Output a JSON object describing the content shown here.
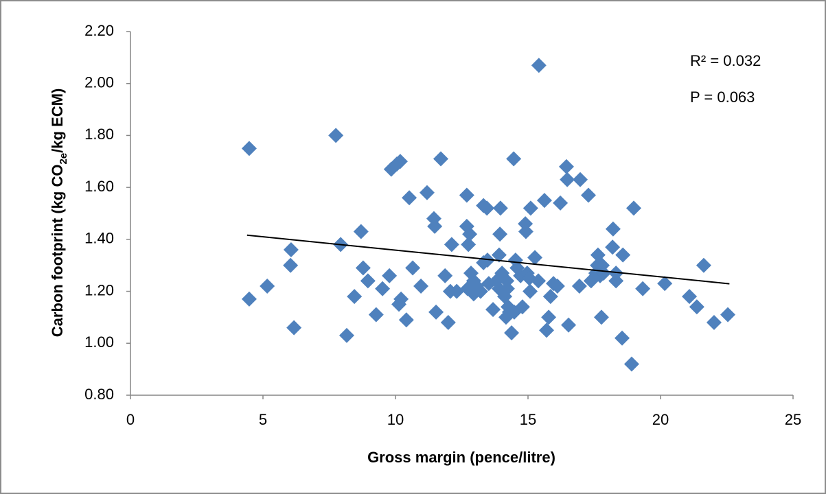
{
  "chart_data": {
    "type": "scatter",
    "x_label": "Gross margin (pence/litre)",
    "y_label": [
      "Carbon footprint (kg CO",
      "2e",
      "/kg ECM)"
    ],
    "annotations": [
      "R² = 0.032",
      "P = 0.063"
    ],
    "color": "#4f81bd",
    "grid": false,
    "xlim": [
      0,
      25
    ],
    "xticks": [
      0,
      5,
      10,
      15,
      20,
      25
    ],
    "ylim": [
      0.8,
      2.2
    ],
    "yticks": [
      {
        "value": 0.8,
        "label": "0.80"
      },
      {
        "value": 1.0,
        "label": "1.00"
      },
      {
        "value": 1.2,
        "label": "1.20"
      },
      {
        "value": 1.4,
        "label": "1.40"
      },
      {
        "value": 1.6,
        "label": "1.60"
      },
      {
        "value": 1.8,
        "label": "1.80"
      },
      {
        "value": 2.0,
        "label": "2.00"
      },
      {
        "value": 2.2,
        "label": "2.20"
      }
    ],
    "x": [
      4.48,
      4.48,
      5.16,
      6.06,
      6.04,
      6.17,
      7.75,
      7.93,
      8.16,
      8.45,
      8.7,
      8.78,
      8.96,
      9.27,
      9.51,
      9.77,
      9.84,
      10.05,
      10.18,
      10.13,
      10.21,
      10.41,
      10.52,
      10.65,
      10.96,
      11.19,
      11.45,
      11.48,
      11.53,
      11.71,
      11.87,
      11.99,
      12.07,
      12.12,
      12.31,
      12.69,
      12.69,
      12.75,
      12.8,
      12.72,
      12.85,
      12.95,
      12.95,
      13.06,
      13.21,
      13.32,
      13.32,
      13.45,
      13.47,
      13.52,
      13.68,
      13.81,
      13.91,
      13.91,
      13.96,
      13.94,
      14.02,
      14.12,
      14.2,
      14.22,
      14.25,
      14.17,
      14.3,
      14.38,
      14.48,
      14.46,
      14.53,
      14.59,
      14.72,
      14.79,
      14.9,
      14.92,
      14.97,
      15.05,
      15.08,
      15.1,
      15.26,
      15.39,
      15.41,
      15.62,
      15.7,
      15.78,
      15.85,
      15.96,
      16.11,
      16.22,
      16.45,
      16.48,
      16.53,
      16.97,
      16.94,
      17.28,
      17.38,
      17.56,
      17.64,
      17.62,
      17.72,
      17.8,
      17.77,
      17.85,
      18.21,
      18.19,
      18.32,
      18.32,
      18.55,
      18.58,
      18.91,
      18.99,
      19.33,
      20.16,
      21.09,
      21.37,
      21.63,
      22.02,
      22.54
    ],
    "y": [
      1.17,
      1.75,
      1.22,
      1.36,
      1.3,
      1.06,
      1.8,
      1.38,
      1.03,
      1.18,
      1.43,
      1.29,
      1.24,
      1.11,
      1.21,
      1.26,
      1.67,
      1.69,
      1.7,
      1.15,
      1.17,
      1.09,
      1.56,
      1.29,
      1.22,
      1.58,
      1.48,
      1.45,
      1.12,
      1.71,
      1.26,
      1.08,
      1.2,
      1.38,
      1.2,
      1.57,
      1.45,
      1.38,
      1.42,
      1.21,
      1.27,
      1.19,
      1.24,
      1.22,
      1.2,
      1.31,
      1.53,
      1.52,
      1.32,
      1.23,
      1.13,
      1.24,
      1.21,
      1.34,
      1.52,
      1.42,
      1.27,
      1.18,
      1.24,
      1.21,
      1.14,
      1.1,
      1.12,
      1.04,
      1.12,
      1.71,
      1.32,
      1.29,
      1.26,
      1.14,
      1.46,
      1.43,
      1.27,
      1.25,
      1.2,
      1.52,
      1.33,
      1.24,
      2.07,
      1.55,
      1.05,
      1.1,
      1.18,
      1.23,
      1.22,
      1.54,
      1.68,
      1.63,
      1.07,
      1.63,
      1.22,
      1.57,
      1.24,
      1.27,
      1.34,
      1.3,
      1.26,
      1.3,
      1.1,
      1.27,
      1.44,
      1.37,
      1.24,
      1.27,
      1.02,
      1.34,
      0.92,
      1.52,
      1.21,
      1.23,
      1.18,
      1.14,
      1.3,
      1.08,
      1.11
    ],
    "trendline": {
      "x": [
        4.4,
        22.6
      ],
      "y": [
        1.416,
        1.229
      ],
      "color": "#000000"
    }
  }
}
